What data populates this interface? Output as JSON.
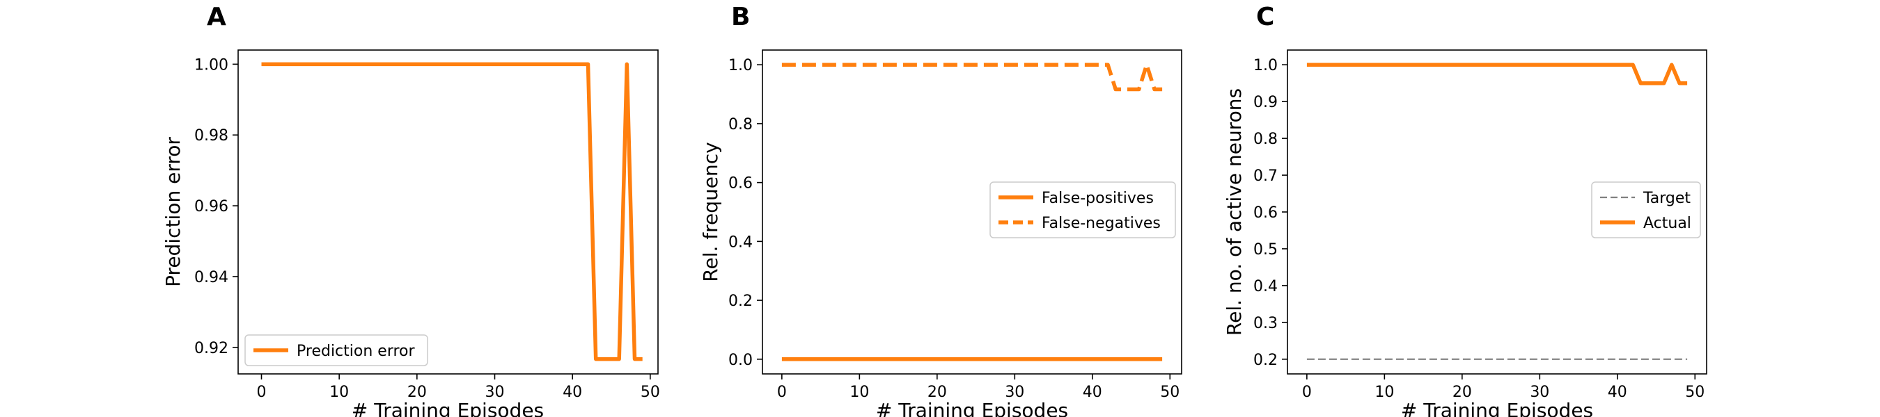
{
  "chart_data": [
    {
      "panel": "A",
      "type": "line",
      "xlabel": "# Training Episodes",
      "ylabel": "Prediction error",
      "xlim": [
        -3,
        51
      ],
      "ylim": [
        0.9125,
        1.004
      ],
      "xticks": [
        0,
        10,
        20,
        30,
        40,
        50
      ],
      "yticks": [
        0.92,
        0.94,
        0.96,
        0.98,
        1.0
      ],
      "ytick_labels": [
        "0.92",
        "0.94",
        "0.96",
        "0.98",
        "1.00"
      ],
      "grid": false,
      "legend": {
        "placement": "lower-left"
      },
      "series": [
        {
          "name": "Prediction error",
          "color": "#ff7f0e",
          "style": "solid",
          "x": [
            0,
            1,
            2,
            3,
            4,
            5,
            6,
            7,
            8,
            9,
            10,
            11,
            12,
            13,
            14,
            15,
            16,
            17,
            18,
            19,
            20,
            21,
            22,
            23,
            24,
            25,
            26,
            27,
            28,
            29,
            30,
            31,
            32,
            33,
            34,
            35,
            36,
            37,
            38,
            39,
            40,
            41,
            42,
            43,
            44,
            45,
            46,
            47,
            48,
            49
          ],
          "y": [
            1,
            1,
            1,
            1,
            1,
            1,
            1,
            1,
            1,
            1,
            1,
            1,
            1,
            1,
            1,
            1,
            1,
            1,
            1,
            1,
            1,
            1,
            1,
            1,
            1,
            1,
            1,
            1,
            1,
            1,
            1,
            1,
            1,
            1,
            1,
            1,
            1,
            1,
            1,
            1,
            1,
            1,
            1,
            0.9167,
            0.9167,
            0.9167,
            0.9167,
            1,
            0.9167,
            0.9167
          ]
        }
      ]
    },
    {
      "panel": "B",
      "type": "line",
      "xlabel": "# Training Episodes",
      "ylabel": "Rel. frequency",
      "xlim": [
        -2.5,
        51.5
      ],
      "ylim": [
        -0.05,
        1.05
      ],
      "xticks": [
        0,
        10,
        20,
        30,
        40,
        50
      ],
      "yticks": [
        0.0,
        0.2,
        0.4,
        0.6,
        0.8,
        1.0
      ],
      "ytick_labels": [
        "0.0",
        "0.2",
        "0.4",
        "0.6",
        "0.8",
        "1.0"
      ],
      "grid": false,
      "legend": {
        "placement": "center-right"
      },
      "series": [
        {
          "name": "False-positives",
          "color": "#ff7f0e",
          "style": "solid",
          "x": [
            0,
            1,
            2,
            3,
            4,
            5,
            6,
            7,
            8,
            9,
            10,
            11,
            12,
            13,
            14,
            15,
            16,
            17,
            18,
            19,
            20,
            21,
            22,
            23,
            24,
            25,
            26,
            27,
            28,
            29,
            30,
            31,
            32,
            33,
            34,
            35,
            36,
            37,
            38,
            39,
            40,
            41,
            42,
            43,
            44,
            45,
            46,
            47,
            48,
            49
          ],
          "y": [
            0,
            0,
            0,
            0,
            0,
            0,
            0,
            0,
            0,
            0,
            0,
            0,
            0,
            0,
            0,
            0,
            0,
            0,
            0,
            0,
            0,
            0,
            0,
            0,
            0,
            0,
            0,
            0,
            0,
            0,
            0,
            0,
            0,
            0,
            0,
            0,
            0,
            0,
            0,
            0,
            0,
            0,
            0,
            0,
            0,
            0,
            0,
            0,
            0,
            0
          ]
        },
        {
          "name": "False-negatives",
          "color": "#ff7f0e",
          "style": "dashed",
          "x": [
            0,
            1,
            2,
            3,
            4,
            5,
            6,
            7,
            8,
            9,
            10,
            11,
            12,
            13,
            14,
            15,
            16,
            17,
            18,
            19,
            20,
            21,
            22,
            23,
            24,
            25,
            26,
            27,
            28,
            29,
            30,
            31,
            32,
            33,
            34,
            35,
            36,
            37,
            38,
            39,
            40,
            41,
            42,
            43,
            44,
            45,
            46,
            47,
            48,
            49
          ],
          "y": [
            1,
            1,
            1,
            1,
            1,
            1,
            1,
            1,
            1,
            1,
            1,
            1,
            1,
            1,
            1,
            1,
            1,
            1,
            1,
            1,
            1,
            1,
            1,
            1,
            1,
            1,
            1,
            1,
            1,
            1,
            1,
            1,
            1,
            1,
            1,
            1,
            1,
            1,
            1,
            1,
            1,
            1,
            1,
            0.9167,
            0.9167,
            0.9167,
            0.9167,
            1,
            0.9167,
            0.9167
          ]
        }
      ]
    },
    {
      "panel": "C",
      "type": "line",
      "xlabel": "# Training Episodes",
      "ylabel": "Rel. no. of active neurons",
      "xlim": [
        -2.5,
        51.5
      ],
      "ylim": [
        0.16,
        1.04
      ],
      "xticks": [
        0,
        10,
        20,
        30,
        40,
        50
      ],
      "yticks": [
        0.2,
        0.3,
        0.4,
        0.5,
        0.6,
        0.7,
        0.8,
        0.9,
        1.0
      ],
      "ytick_labels": [
        "0.2",
        "0.3",
        "0.4",
        "0.5",
        "0.6",
        "0.7",
        "0.8",
        "0.9",
        "1.0"
      ],
      "grid": false,
      "legend": {
        "placement": "center-right"
      },
      "series": [
        {
          "name": "Target",
          "color": "#808080",
          "style": "dashed-thin",
          "x": [
            0,
            49
          ],
          "y": [
            0.2,
            0.2
          ]
        },
        {
          "name": "Actual",
          "color": "#ff7f0e",
          "style": "solid",
          "x": [
            0,
            1,
            2,
            3,
            4,
            5,
            6,
            7,
            8,
            9,
            10,
            11,
            12,
            13,
            14,
            15,
            16,
            17,
            18,
            19,
            20,
            21,
            22,
            23,
            24,
            25,
            26,
            27,
            28,
            29,
            30,
            31,
            32,
            33,
            34,
            35,
            36,
            37,
            38,
            39,
            40,
            41,
            42,
            43,
            44,
            45,
            46,
            47,
            48,
            49
          ],
          "y": [
            1,
            1,
            1,
            1,
            1,
            1,
            1,
            1,
            1,
            1,
            1,
            1,
            1,
            1,
            1,
            1,
            1,
            1,
            1,
            1,
            1,
            1,
            1,
            1,
            1,
            1,
            1,
            1,
            1,
            1,
            1,
            1,
            1,
            1,
            1,
            1,
            1,
            1,
            1,
            1,
            1,
            1,
            1,
            0.95,
            0.95,
            0.95,
            0.95,
            1,
            0.95,
            0.95
          ]
        }
      ]
    }
  ]
}
